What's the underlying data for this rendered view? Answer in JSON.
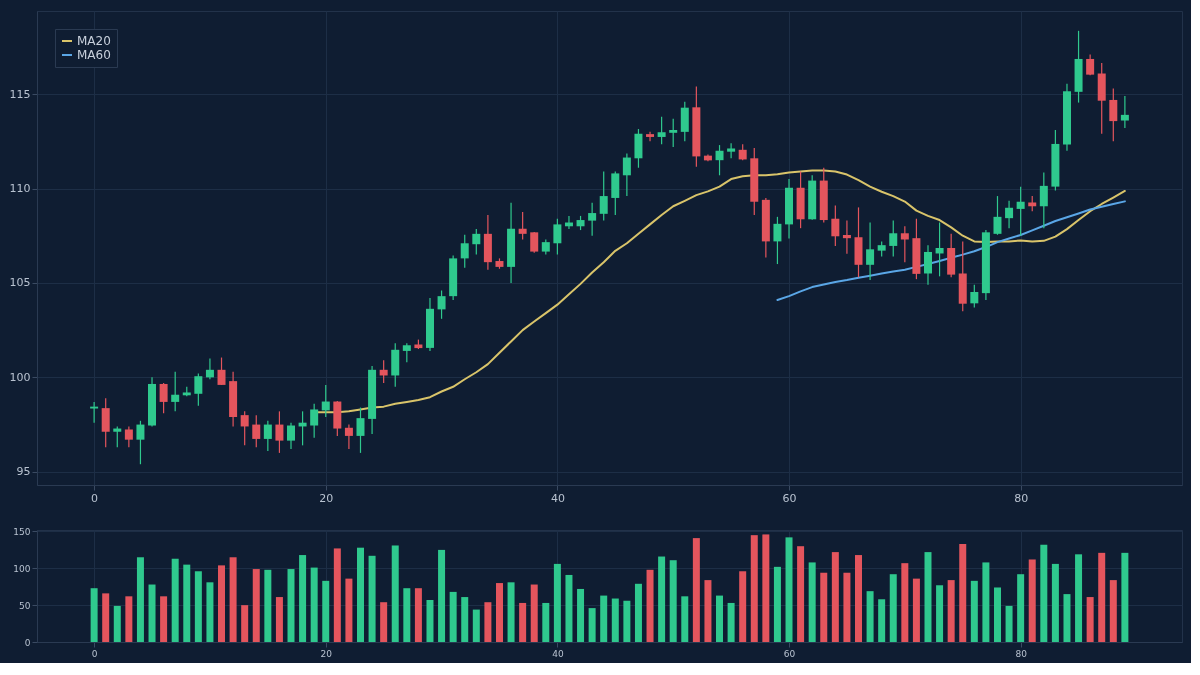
{
  "chart_data": [
    {
      "type": "candlestick",
      "x": [
        0,
        1,
        2,
        3,
        4,
        5,
        6,
        7,
        8,
        9,
        10,
        11,
        12,
        13,
        14,
        15,
        16,
        17,
        18,
        19,
        20,
        21,
        22,
        23,
        24,
        25,
        26,
        27,
        28,
        29,
        30,
        31,
        32,
        33,
        34,
        35,
        36,
        37,
        38,
        39,
        40,
        41,
        42,
        43,
        44,
        45,
        46,
        47,
        48,
        49,
        50,
        51,
        52,
        53,
        54,
        55,
        56,
        57,
        58,
        59,
        60,
        61,
        62,
        63,
        64,
        65,
        66,
        67,
        68,
        69,
        70,
        71,
        72,
        73,
        74,
        75,
        76,
        77,
        78,
        79,
        80,
        81,
        82,
        83,
        84,
        85,
        86,
        87,
        88,
        89
      ],
      "ohlc": [
        [
          98.35,
          98.7,
          97.6,
          98.45
        ],
        [
          98.37,
          98.9,
          96.3,
          97.12
        ],
        [
          97.12,
          97.4,
          96.3,
          97.29
        ],
        [
          97.24,
          97.4,
          96.3,
          96.7
        ],
        [
          96.7,
          97.7,
          95.4,
          97.5
        ],
        [
          97.45,
          100.0,
          97.4,
          99.65
        ],
        [
          99.65,
          99.7,
          98.1,
          98.7
        ],
        [
          98.7,
          100.3,
          98.2,
          99.08
        ],
        [
          99.05,
          99.5,
          99.0,
          99.2
        ],
        [
          99.13,
          100.2,
          98.5,
          100.06
        ],
        [
          100.0,
          101.0,
          99.9,
          100.4
        ],
        [
          100.4,
          101.05,
          99.6,
          99.6
        ],
        [
          99.8,
          100.3,
          97.4,
          97.9
        ],
        [
          98.0,
          98.2,
          96.4,
          97.4
        ],
        [
          97.5,
          98.0,
          96.3,
          96.74
        ],
        [
          96.74,
          97.7,
          96.1,
          97.5
        ],
        [
          97.5,
          98.2,
          96.0,
          96.65
        ],
        [
          96.65,
          97.6,
          96.2,
          97.45
        ],
        [
          97.4,
          98.2,
          96.4,
          97.6
        ],
        [
          97.45,
          98.6,
          96.8,
          98.3
        ],
        [
          98.25,
          99.6,
          97.9,
          98.72
        ],
        [
          98.72,
          98.75,
          96.9,
          97.29
        ],
        [
          97.33,
          97.5,
          96.2,
          96.9
        ],
        [
          96.9,
          98.4,
          96.0,
          97.84
        ],
        [
          97.8,
          100.6,
          97.0,
          100.4
        ],
        [
          100.4,
          100.9,
          99.7,
          100.1
        ],
        [
          100.1,
          101.8,
          99.5,
          101.46
        ],
        [
          101.4,
          101.8,
          100.8,
          101.7
        ],
        [
          101.74,
          102.0,
          101.5,
          101.55
        ],
        [
          101.56,
          104.2,
          101.4,
          103.63
        ],
        [
          103.6,
          104.6,
          103.1,
          104.3
        ],
        [
          104.3,
          106.45,
          104.1,
          106.3
        ],
        [
          106.3,
          107.55,
          105.8,
          107.1
        ],
        [
          107.05,
          107.85,
          106.5,
          107.6
        ],
        [
          107.6,
          108.6,
          105.7,
          106.1
        ],
        [
          106.16,
          106.3,
          105.75,
          105.85
        ],
        [
          105.85,
          109.25,
          105.0,
          107.87
        ],
        [
          107.87,
          108.75,
          107.3,
          107.6
        ],
        [
          107.68,
          107.7,
          106.6,
          106.66
        ],
        [
          106.66,
          107.3,
          106.5,
          107.16
        ],
        [
          107.1,
          108.4,
          106.5,
          108.1
        ],
        [
          108.0,
          108.55,
          107.85,
          108.2
        ],
        [
          108.0,
          108.55,
          107.8,
          108.33
        ],
        [
          108.3,
          109.25,
          107.5,
          108.7
        ],
        [
          108.66,
          110.9,
          108.3,
          109.6
        ],
        [
          109.5,
          110.9,
          108.6,
          110.8
        ],
        [
          110.7,
          111.85,
          109.6,
          111.64
        ],
        [
          111.6,
          113.15,
          111.1,
          112.9
        ],
        [
          112.88,
          113.0,
          112.5,
          112.73
        ],
        [
          112.73,
          113.8,
          112.35,
          112.98
        ],
        [
          112.95,
          113.7,
          112.2,
          113.1
        ],
        [
          113.0,
          114.6,
          112.5,
          114.28
        ],
        [
          114.3,
          115.4,
          111.15,
          111.7
        ],
        [
          111.74,
          111.8,
          111.45,
          111.49
        ],
        [
          111.5,
          112.3,
          110.7,
          112.0
        ],
        [
          111.95,
          112.4,
          111.6,
          112.12
        ],
        [
          112.05,
          112.35,
          111.5,
          111.54
        ],
        [
          111.6,
          112.15,
          108.6,
          109.3
        ],
        [
          109.4,
          109.5,
          106.35,
          107.2
        ],
        [
          107.2,
          108.5,
          106.0,
          108.13
        ],
        [
          108.1,
          110.5,
          107.35,
          110.04
        ],
        [
          110.04,
          110.9,
          107.9,
          108.37
        ],
        [
          108.37,
          110.7,
          108.35,
          110.42
        ],
        [
          110.42,
          111.1,
          108.2,
          108.33
        ],
        [
          108.4,
          109.1,
          106.95,
          107.47
        ],
        [
          107.54,
          108.3,
          106.55,
          107.37
        ],
        [
          107.42,
          109.0,
          105.3,
          105.96
        ],
        [
          105.96,
          108.2,
          105.15,
          106.78
        ],
        [
          106.71,
          107.2,
          106.4,
          107.0
        ],
        [
          106.96,
          108.3,
          106.4,
          107.63
        ],
        [
          107.63,
          108.0,
          106.1,
          107.3
        ],
        [
          107.37,
          108.4,
          105.2,
          105.48
        ],
        [
          105.5,
          107.0,
          104.9,
          106.64
        ],
        [
          106.56,
          108.2,
          105.35,
          106.85
        ],
        [
          106.85,
          107.6,
          105.3,
          105.44
        ],
        [
          105.5,
          107.2,
          103.5,
          103.9
        ],
        [
          103.92,
          104.9,
          103.7,
          104.52
        ],
        [
          104.46,
          107.8,
          104.1,
          107.68
        ],
        [
          107.6,
          109.6,
          107.55,
          108.5
        ],
        [
          108.43,
          109.35,
          107.9,
          108.98
        ],
        [
          108.92,
          110.1,
          107.5,
          109.3
        ],
        [
          109.26,
          109.6,
          108.8,
          109.06
        ],
        [
          109.06,
          110.85,
          107.9,
          110.14
        ],
        [
          110.1,
          113.1,
          109.9,
          112.36
        ],
        [
          112.33,
          115.55,
          112.0,
          115.15
        ],
        [
          115.12,
          118.35,
          114.55,
          116.86
        ],
        [
          116.86,
          117.1,
          116.0,
          116.03
        ],
        [
          116.09,
          116.65,
          112.9,
          114.65
        ],
        [
          114.69,
          115.3,
          112.5,
          113.57
        ],
        [
          113.6,
          114.9,
          113.2,
          113.9
        ]
      ],
      "colors": [
        "#2fc98e",
        "#e4555d",
        "#2fc98e",
        "#e4555d",
        "#2fc98e",
        "#2fc98e",
        "#e4555d",
        "#2fc98e",
        "#2fc98e",
        "#2fc98e",
        "#2fc98e",
        "#e4555d",
        "#e4555d",
        "#e4555d",
        "#e4555d",
        "#2fc98e",
        "#e4555d",
        "#2fc98e",
        "#2fc98e",
        "#2fc98e",
        "#2fc98e",
        "#e4555d",
        "#e4555d",
        "#2fc98e",
        "#2fc98e",
        "#e4555d",
        "#2fc98e",
        "#2fc98e",
        "#e4555d",
        "#2fc98e",
        "#2fc98e",
        "#2fc98e",
        "#2fc98e",
        "#2fc98e",
        "#e4555d",
        "#e4555d",
        "#2fc98e",
        "#e4555d",
        "#e4555d",
        "#2fc98e",
        "#2fc98e",
        "#2fc98e",
        "#2fc98e",
        "#2fc98e",
        "#2fc98e",
        "#2fc98e",
        "#2fc98e",
        "#2fc98e",
        "#e4555d",
        "#2fc98e",
        "#2fc98e",
        "#2fc98e",
        "#e4555d",
        "#e4555d",
        "#2fc98e",
        "#2fc98e",
        "#e4555d",
        "#e4555d",
        "#e4555d",
        "#2fc98e",
        "#2fc98e",
        "#e4555d",
        "#2fc98e",
        "#e4555d",
        "#e4555d",
        "#e4555d",
        "#e4555d",
        "#2fc98e",
        "#2fc98e",
        "#2fc98e",
        "#e4555d",
        "#e4555d",
        "#2fc98e",
        "#2fc98e",
        "#e4555d",
        "#e4555d",
        "#2fc98e",
        "#2fc98e",
        "#2fc98e",
        "#2fc98e",
        "#2fc98e",
        "#e4555d",
        "#2fc98e",
        "#2fc98e",
        "#2fc98e",
        "#2fc98e",
        "#e4555d",
        "#e4555d",
        "#e4555d",
        "#2fc98e"
      ],
      "series": [
        {
          "type": "line",
          "name": "MA20",
          "color": "#d9c46a",
          "x": [
            19,
            20,
            21,
            22,
            23,
            24,
            25,
            26,
            27,
            28,
            29,
            30,
            31,
            32,
            33,
            34,
            35,
            36,
            37,
            38,
            39,
            40,
            41,
            42,
            43,
            44,
            45,
            46,
            47,
            48,
            49,
            50,
            51,
            52,
            53,
            54,
            55,
            56,
            57,
            58,
            59,
            60,
            61,
            62,
            63,
            64,
            65,
            66,
            67,
            68,
            69,
            70,
            71,
            72,
            73,
            74,
            75,
            76,
            77,
            78,
            79,
            80,
            81,
            82,
            83,
            84,
            85,
            86,
            87,
            88,
            89
          ],
          "values": [
            98.15,
            98.15,
            98.15,
            98.2,
            98.3,
            98.4,
            98.45,
            98.6,
            98.7,
            98.8,
            98.95,
            99.25,
            99.5,
            99.9,
            100.27,
            100.7,
            101.3,
            101.9,
            102.5,
            102.96,
            103.4,
            103.85,
            104.4,
            104.95,
            105.55,
            106.1,
            106.7,
            107.1,
            107.6,
            108.1,
            108.6,
            109.06,
            109.35,
            109.65,
            109.85,
            110.1,
            110.5,
            110.65,
            110.7,
            110.7,
            110.75,
            110.85,
            110.9,
            110.95,
            110.95,
            110.9,
            110.74,
            110.44,
            110.1,
            109.83,
            109.6,
            109.31,
            108.83,
            108.55,
            108.33,
            107.94,
            107.5,
            107.2,
            107.17,
            107.2,
            107.2,
            107.25,
            107.2,
            107.23,
            107.45,
            107.85,
            108.33,
            108.8,
            109.18,
            109.52,
            109.87
          ]
        },
        {
          "type": "line",
          "name": "MA60",
          "color": "#5aa6e6",
          "x": [
            59,
            60,
            61,
            62,
            63,
            64,
            65,
            66,
            67,
            68,
            69,
            70,
            71,
            72,
            73,
            74,
            75,
            76,
            77,
            78,
            79,
            80,
            81,
            82,
            83,
            84,
            85,
            86,
            87,
            88,
            89
          ],
          "values": [
            104.1,
            104.3,
            104.55,
            104.78,
            104.92,
            105.05,
            105.15,
            105.27,
            105.38,
            105.5,
            105.6,
            105.7,
            105.85,
            106.0,
            106.16,
            106.33,
            106.5,
            106.68,
            106.9,
            107.16,
            107.35,
            107.54,
            107.78,
            108.03,
            108.28,
            108.48,
            108.68,
            108.89,
            109.03,
            109.18,
            109.32
          ]
        }
      ],
      "xlim": [
        -4.5,
        93.5
      ],
      "xticks": [
        0,
        20,
        40,
        60,
        80
      ],
      "ylim": [
        94.3,
        119.4
      ],
      "yticks": [
        95,
        100,
        105,
        110,
        115
      ],
      "grid": true,
      "legend": "top left"
    },
    {
      "type": "bar",
      "x": [
        0,
        1,
        2,
        3,
        4,
        5,
        6,
        7,
        8,
        9,
        10,
        11,
        12,
        13,
        14,
        15,
        16,
        17,
        18,
        19,
        20,
        21,
        22,
        23,
        24,
        25,
        26,
        27,
        28,
        29,
        30,
        31,
        32,
        33,
        34,
        35,
        36,
        37,
        38,
        39,
        40,
        41,
        42,
        43,
        44,
        45,
        46,
        47,
        48,
        49,
        50,
        51,
        52,
        53,
        54,
        55,
        56,
        57,
        58,
        59,
        60,
        61,
        62,
        63,
        64,
        65,
        66,
        67,
        68,
        69,
        70,
        71,
        72,
        73,
        74,
        75,
        76,
        77,
        78,
        79,
        80,
        81,
        82,
        83,
        84,
        85,
        86,
        87,
        88,
        89
      ],
      "values": [
        73,
        66,
        49,
        62,
        115,
        78,
        62,
        113,
        105,
        96,
        81,
        104,
        115,
        50,
        99,
        98,
        61,
        99,
        118,
        101,
        83,
        127,
        86,
        128,
        117,
        54,
        131,
        73,
        73,
        57,
        125,
        68,
        61,
        44,
        54,
        80,
        81,
        53,
        78,
        53,
        106,
        91,
        72,
        46,
        63,
        59,
        56,
        79,
        98,
        116,
        111,
        62,
        141,
        84,
        63,
        53,
        96,
        145,
        146,
        102,
        142,
        130,
        108,
        94,
        122,
        94,
        118,
        69,
        58,
        92,
        107,
        86,
        122,
        77,
        84,
        133,
        83,
        108,
        74,
        49,
        92,
        112,
        132,
        106,
        65,
        119,
        61,
        121,
        84,
        121
      ],
      "colors": [
        "#2fc98e",
        "#e4555d",
        "#2fc98e",
        "#e4555d",
        "#2fc98e",
        "#2fc98e",
        "#e4555d",
        "#2fc98e",
        "#2fc98e",
        "#2fc98e",
        "#2fc98e",
        "#e4555d",
        "#e4555d",
        "#e4555d",
        "#e4555d",
        "#2fc98e",
        "#e4555d",
        "#2fc98e",
        "#2fc98e",
        "#2fc98e",
        "#2fc98e",
        "#e4555d",
        "#e4555d",
        "#2fc98e",
        "#2fc98e",
        "#e4555d",
        "#2fc98e",
        "#2fc98e",
        "#e4555d",
        "#2fc98e",
        "#2fc98e",
        "#2fc98e",
        "#2fc98e",
        "#2fc98e",
        "#e4555d",
        "#e4555d",
        "#2fc98e",
        "#e4555d",
        "#e4555d",
        "#2fc98e",
        "#2fc98e",
        "#2fc98e",
        "#2fc98e",
        "#2fc98e",
        "#2fc98e",
        "#2fc98e",
        "#2fc98e",
        "#2fc98e",
        "#e4555d",
        "#2fc98e",
        "#2fc98e",
        "#2fc98e",
        "#e4555d",
        "#e4555d",
        "#2fc98e",
        "#2fc98e",
        "#e4555d",
        "#e4555d",
        "#e4555d",
        "#2fc98e",
        "#2fc98e",
        "#e4555d",
        "#2fc98e",
        "#e4555d",
        "#e4555d",
        "#e4555d",
        "#e4555d",
        "#2fc98e",
        "#2fc98e",
        "#2fc98e",
        "#e4555d",
        "#e4555d",
        "#2fc98e",
        "#2fc98e",
        "#e4555d",
        "#e4555d",
        "#2fc98e",
        "#2fc98e",
        "#2fc98e",
        "#2fc98e",
        "#2fc98e",
        "#e4555d",
        "#2fc98e",
        "#2fc98e",
        "#2fc98e",
        "#2fc98e",
        "#e4555d",
        "#e4555d",
        "#e4555d",
        "#2fc98e"
      ],
      "xlim": [
        -4.5,
        93.5
      ],
      "xticks": [
        0,
        20,
        40,
        60,
        80
      ],
      "ylim": [
        0,
        152
      ],
      "yticks": [
        0,
        50,
        100,
        150
      ],
      "grid": true
    }
  ]
}
